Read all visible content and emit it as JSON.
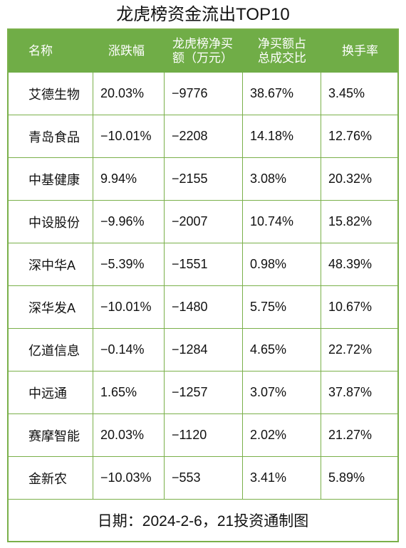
{
  "title": "龙虎榜资金流出TOP10",
  "chart_data": {
    "type": "table",
    "title": "龙虎榜资金流出TOP10",
    "columns": [
      "名称",
      "涨跌幅",
      "龙虎榜净买额（万元）",
      "净买额占总成交比",
      "换手率"
    ],
    "column_lines": [
      [
        "名称"
      ],
      [
        "涨跌幅"
      ],
      [
        "龙虎榜净买",
        "额（万元）"
      ],
      [
        "净买额占",
        "总成交比"
      ],
      [
        "换手率"
      ]
    ],
    "rows": [
      [
        "艾德生物",
        "20.03%",
        "-9776",
        "38.67%",
        "3.45%"
      ],
      [
        "青岛食品",
        "-10.01%",
        "-2208",
        "14.18%",
        "12.76%"
      ],
      [
        "中基健康",
        "9.94%",
        "-2155",
        "3.08%",
        "20.32%"
      ],
      [
        "中设股份",
        "-9.96%",
        "-2007",
        "10.74%",
        "15.82%"
      ],
      [
        "深中华A",
        "-5.39%",
        "-1551",
        "0.98%",
        "48.39%"
      ],
      [
        "深华发A",
        "-10.01%",
        "-1480",
        "5.75%",
        "10.67%"
      ],
      [
        "亿道信息",
        "-0.14%",
        "-1284",
        "4.65%",
        "22.72%"
      ],
      [
        "中远通",
        "1.65%",
        "-1257",
        "3.07%",
        "37.87%"
      ],
      [
        "赛摩智能",
        "20.03%",
        "-1120",
        "2.02%",
        "21.27%"
      ],
      [
        "金新农",
        "-10.03%",
        "-553",
        "3.41%",
        "5.89%"
      ]
    ],
    "footer": "日期：2024-2-6，21投资通制图"
  },
  "colors": {
    "header_bg": "#70ad47",
    "border": "#7ab04a",
    "header_text": "#ffffff"
  }
}
